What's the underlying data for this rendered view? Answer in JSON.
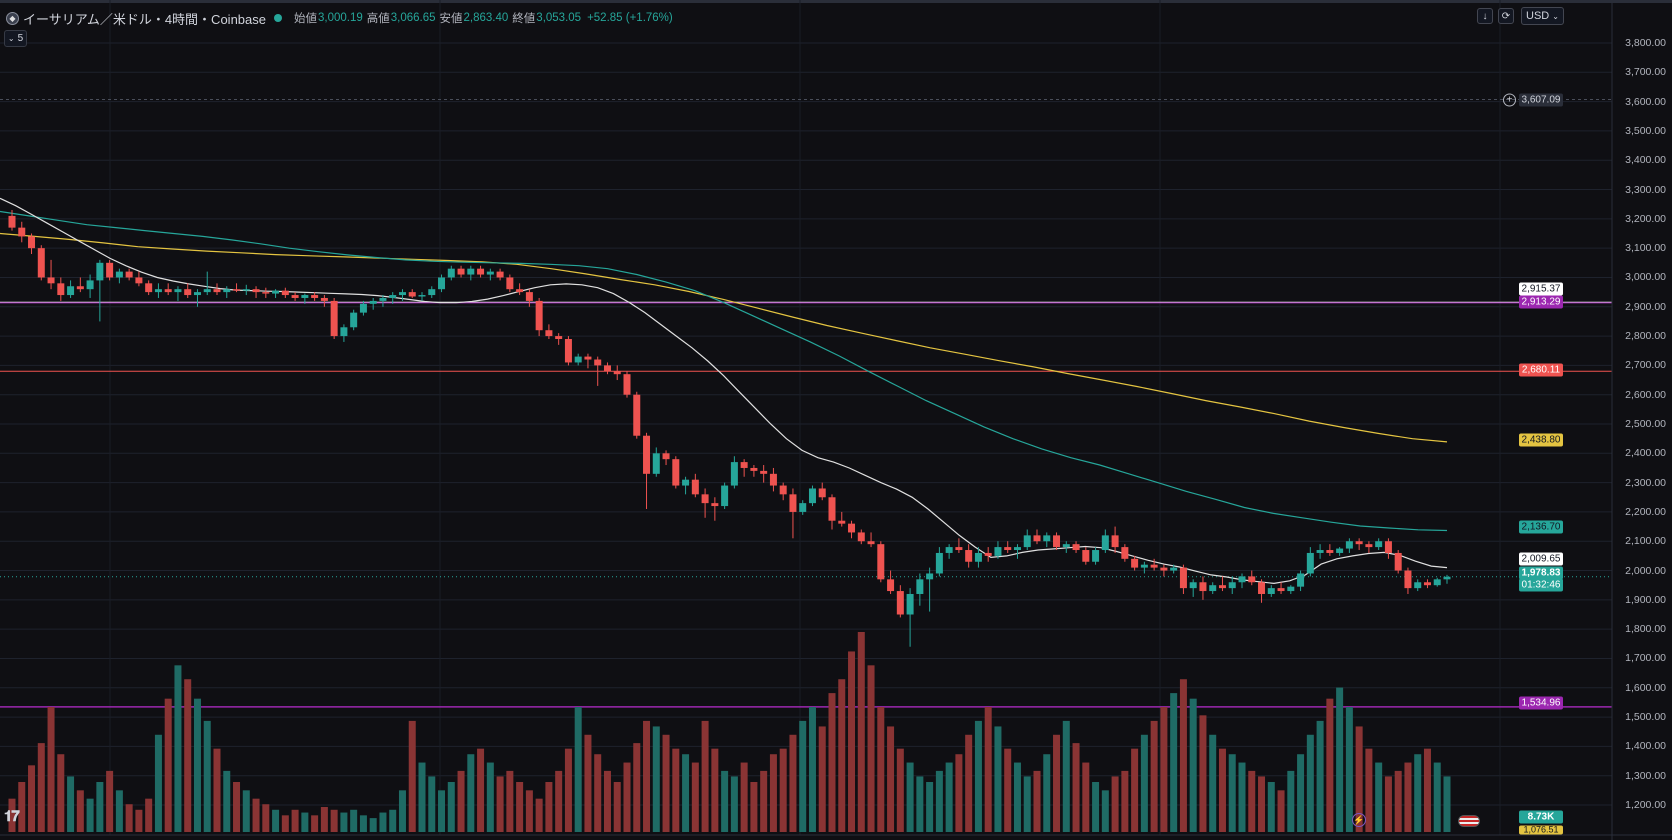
{
  "legend": {
    "coin_icon": "ethereum-icon",
    "title": "イーサリアム／米ドル・4時間・Coinbase",
    "open_label": "始値",
    "open_value": "3,000.19",
    "high_label": "高値",
    "high_value": "3,066.65",
    "low_label": "安値",
    "low_value": "2,863.40",
    "close_label": "終値",
    "close_value": "3,053.05",
    "change": "+52.85 (+1.76%)",
    "collapse_count": "5"
  },
  "toolbar": {
    "currency": "USD",
    "download_icon": "arrow-down-icon",
    "refresh_icon": "refresh-icon"
  },
  "colors": {
    "background": "#0f0f13",
    "up": "#26a69a",
    "down": "#ef5350",
    "ma_white": "#e0e0e0",
    "ma_teal": "#26a69a",
    "ma_yellow": "#e4c441",
    "line_red": "#ef5350",
    "line_purple": "#9c27b0",
    "line_white": "#ffffff"
  },
  "axis": {
    "currency_unit": "USD",
    "ticks": [
      "3,800.00",
      "3,700.00",
      "3,600.00",
      "3,500.00",
      "3,400.00",
      "3,300.00",
      "3,200.00",
      "3,100.00",
      "3,000.00",
      "2,900.00",
      "2,800.00",
      "2,700.00",
      "2,600.00",
      "2,500.00",
      "2,400.00",
      "2,300.00",
      "2,200.00",
      "2,100.00",
      "2,000.00",
      "1,900.00",
      "1,800.00",
      "1,700.00",
      "1,600.00",
      "1,500.00",
      "1,400.00",
      "1,300.00",
      "1,200.00"
    ]
  },
  "price_tags": {
    "crosshair": "3,607.09",
    "line_white_1": "2,915.37",
    "line_white_2": "2,913.29",
    "line_red": "2,680.11",
    "ma_yellow": "2,438.80",
    "ma_teal": "2,136.70",
    "ma_white": "2,009.65",
    "last_price": "1,978.83",
    "countdown": "01:32:46",
    "line_purple": "1,534.96",
    "volume": "8.73K",
    "volume_extra": "1,076.51"
  },
  "chart_data": {
    "type": "candlestick",
    "y_range": [
      1150,
      3850
    ],
    "horizontal_lines": [
      3607.09,
      2915.37,
      2913.29,
      2680.11,
      1534.96
    ],
    "last_price": 1978.83,
    "candles": [
      [
        3210,
        3230,
        3160,
        3170
      ],
      [
        3170,
        3190,
        3120,
        3140
      ],
      [
        3140,
        3150,
        3080,
        3100
      ],
      [
        3100,
        3110,
        2990,
        3000
      ],
      [
        3000,
        3060,
        2960,
        2980
      ],
      [
        2980,
        3000,
        2920,
        2940
      ],
      [
        2940,
        2990,
        2930,
        2970
      ],
      [
        2970,
        3000,
        2950,
        2960
      ],
      [
        2960,
        3010,
        2930,
        2990
      ],
      [
        2990,
        3060,
        2850,
        3050
      ],
      [
        3050,
        3060,
        2990,
        3000
      ],
      [
        3000,
        3030,
        2980,
        3020
      ],
      [
        3020,
        3030,
        2990,
        3000
      ],
      [
        3000,
        3020,
        2970,
        2980
      ],
      [
        2980,
        2990,
        2940,
        2950
      ],
      [
        2950,
        2980,
        2930,
        2960
      ],
      [
        2960,
        2980,
        2940,
        2950
      ],
      [
        2950,
        2970,
        2920,
        2960
      ],
      [
        2960,
        2980,
        2930,
        2940
      ],
      [
        2940,
        2960,
        2900,
        2950
      ],
      [
        2950,
        3020,
        2940,
        2960
      ],
      [
        2960,
        2980,
        2940,
        2950
      ],
      [
        2950,
        2970,
        2930,
        2960
      ],
      [
        2960,
        2980,
        2950,
        2955
      ],
      [
        2955,
        2975,
        2940,
        2960
      ],
      [
        2960,
        2970,
        2930,
        2950
      ],
      [
        2950,
        2965,
        2930,
        2945
      ],
      [
        2945,
        2960,
        2930,
        2955
      ],
      [
        2955,
        2965,
        2930,
        2940
      ],
      [
        2940,
        2950,
        2920,
        2930
      ],
      [
        2930,
        2945,
        2910,
        2940
      ],
      [
        2940,
        2950,
        2920,
        2930
      ],
      [
        2930,
        2940,
        2900,
        2920
      ],
      [
        2920,
        2930,
        2790,
        2800
      ],
      [
        2800,
        2840,
        2780,
        2830
      ],
      [
        2830,
        2890,
        2820,
        2880
      ],
      [
        2880,
        2920,
        2870,
        2910
      ],
      [
        2910,
        2930,
        2890,
        2920
      ],
      [
        2920,
        2940,
        2900,
        2930
      ],
      [
        2930,
        2950,
        2910,
        2940
      ],
      [
        2940,
        2960,
        2920,
        2950
      ],
      [
        2950,
        2960,
        2930,
        2935
      ],
      [
        2935,
        2950,
        2920,
        2940
      ],
      [
        2940,
        2970,
        2930,
        2960
      ],
      [
        2960,
        3010,
        2950,
        3000
      ],
      [
        3000,
        3040,
        2990,
        3030
      ],
      [
        3030,
        3040,
        3000,
        3010
      ],
      [
        3010,
        3040,
        2990,
        3030
      ],
      [
        3030,
        3040,
        3000,
        3010
      ],
      [
        3010,
        3030,
        2990,
        3020
      ],
      [
        3020,
        3030,
        2990,
        3000
      ],
      [
        3000,
        3010,
        2950,
        2960
      ],
      [
        2960,
        2980,
        2940,
        2950
      ],
      [
        2950,
        2960,
        2900,
        2920
      ],
      [
        2920,
        2930,
        2800,
        2820
      ],
      [
        2820,
        2840,
        2790,
        2800
      ],
      [
        2800,
        2810,
        2770,
        2790
      ],
      [
        2790,
        2800,
        2700,
        2710
      ],
      [
        2710,
        2740,
        2700,
        2730
      ],
      [
        2730,
        2740,
        2690,
        2720
      ],
      [
        2720,
        2730,
        2630,
        2700
      ],
      [
        2700,
        2710,
        2670,
        2680
      ],
      [
        2680,
        2700,
        2650,
        2670
      ],
      [
        2670,
        2680,
        2590,
        2600
      ],
      [
        2600,
        2610,
        2450,
        2460
      ],
      [
        2460,
        2470,
        2210,
        2330
      ],
      [
        2330,
        2420,
        2320,
        2400
      ],
      [
        2400,
        2410,
        2360,
        2380
      ],
      [
        2380,
        2390,
        2280,
        2290
      ],
      [
        2290,
        2320,
        2260,
        2310
      ],
      [
        2310,
        2330,
        2250,
        2260
      ],
      [
        2260,
        2280,
        2180,
        2230
      ],
      [
        2230,
        2250,
        2170,
        2220
      ],
      [
        2220,
        2300,
        2210,
        2290
      ],
      [
        2290,
        2390,
        2280,
        2370
      ],
      [
        2370,
        2380,
        2320,
        2350
      ],
      [
        2350,
        2360,
        2320,
        2340
      ],
      [
        2340,
        2360,
        2300,
        2330
      ],
      [
        2330,
        2350,
        2270,
        2290
      ],
      [
        2290,
        2300,
        2240,
        2260
      ],
      [
        2260,
        2280,
        2110,
        2200
      ],
      [
        2200,
        2240,
        2190,
        2230
      ],
      [
        2230,
        2290,
        2220,
        2280
      ],
      [
        2280,
        2300,
        2240,
        2250
      ],
      [
        2250,
        2260,
        2140,
        2170
      ],
      [
        2170,
        2200,
        2150,
        2160
      ],
      [
        2160,
        2170,
        2110,
        2130
      ],
      [
        2130,
        2140,
        2090,
        2100
      ],
      [
        2100,
        2130,
        2080,
        2090
      ],
      [
        2090,
        2100,
        1960,
        1970
      ],
      [
        1970,
        2000,
        1920,
        1930
      ],
      [
        1930,
        1950,
        1840,
        1850
      ],
      [
        1850,
        1940,
        1740,
        1920
      ],
      [
        1920,
        1990,
        1880,
        1970
      ],
      [
        1970,
        2010,
        1860,
        1990
      ],
      [
        1990,
        2080,
        1980,
        2060
      ],
      [
        2060,
        2090,
        2040,
        2080
      ],
      [
        2080,
        2110,
        2060,
        2070
      ],
      [
        2070,
        2090,
        2010,
        2030
      ],
      [
        2030,
        2080,
        2010,
        2060
      ],
      [
        2060,
        2080,
        2030,
        2050
      ],
      [
        2050,
        2100,
        2040,
        2080
      ],
      [
        2080,
        2100,
        2060,
        2070
      ],
      [
        2070,
        2090,
        2040,
        2080
      ],
      [
        2080,
        2140,
        2070,
        2120
      ],
      [
        2120,
        2140,
        2090,
        2100
      ],
      [
        2100,
        2130,
        2080,
        2120
      ],
      [
        2120,
        2130,
        2070,
        2080
      ],
      [
        2080,
        2100,
        2060,
        2090
      ],
      [
        2090,
        2100,
        2060,
        2070
      ],
      [
        2070,
        2080,
        2020,
        2030
      ],
      [
        2030,
        2080,
        2020,
        2070
      ],
      [
        2070,
        2140,
        2060,
        2120
      ],
      [
        2120,
        2150,
        2060,
        2080
      ],
      [
        2080,
        2090,
        2030,
        2040
      ],
      [
        2040,
        2050,
        2000,
        2010
      ],
      [
        2010,
        2030,
        1990,
        2020
      ],
      [
        2020,
        2040,
        2000,
        2010
      ],
      [
        2010,
        2020,
        1980,
        2000
      ],
      [
        2000,
        2020,
        1990,
        2010
      ],
      [
        2010,
        2020,
        1920,
        1940
      ],
      [
        1940,
        1970,
        1910,
        1960
      ],
      [
        1960,
        1980,
        1900,
        1930
      ],
      [
        1930,
        1960,
        1920,
        1950
      ],
      [
        1950,
        1980,
        1930,
        1940
      ],
      [
        1940,
        1980,
        1920,
        1960
      ],
      [
        1960,
        1990,
        1940,
        1980
      ],
      [
        1980,
        2000,
        1950,
        1960
      ],
      [
        1960,
        1970,
        1890,
        1920
      ],
      [
        1920,
        1950,
        1910,
        1940
      ],
      [
        1940,
        1960,
        1920,
        1930
      ],
      [
        1930,
        1950,
        1920,
        1945
      ],
      [
        1945,
        2000,
        1930,
        1990
      ],
      [
        1990,
        2080,
        1980,
        2060
      ],
      [
        2060,
        2090,
        2040,
        2070
      ],
      [
        2070,
        2090,
        2050,
        2060
      ],
      [
        2060,
        2080,
        2050,
        2075
      ],
      [
        2075,
        2110,
        2060,
        2100
      ],
      [
        2100,
        2110,
        2070,
        2090
      ],
      [
        2090,
        2100,
        2060,
        2080
      ],
      [
        2080,
        2110,
        2070,
        2100
      ],
      [
        2100,
        2110,
        2040,
        2060
      ],
      [
        2060,
        2070,
        1990,
        2000
      ],
      [
        2000,
        2010,
        1920,
        1940
      ],
      [
        1940,
        1970,
        1930,
        1960
      ],
      [
        1960,
        1970,
        1940,
        1950
      ],
      [
        1950,
        1975,
        1945,
        1970
      ],
      [
        1970,
        1985,
        1955,
        1978.83
      ]
    ],
    "ma_white": [
      3270,
      3245,
      3215,
      3185,
      3155,
      3125,
      3095,
      3065,
      3040,
      3018,
      3000,
      2988,
      2978,
      2970,
      2962,
      2957,
      2955,
      2953,
      2952,
      2950,
      2948,
      2946,
      2944,
      2942,
      2938,
      2932,
      2925,
      2918,
      2914,
      2914,
      2918,
      2926,
      2938,
      2952,
      2965,
      2975,
      2978,
      2975,
      2965,
      2945,
      2915,
      2880,
      2840,
      2800,
      2760,
      2715,
      2665,
      2610,
      2555,
      2500,
      2450,
      2410,
      2385,
      2370,
      2350,
      2325,
      2300,
      2278,
      2250,
      2210,
      2165,
      2120,
      2080,
      2045,
      2050,
      2062,
      2070,
      2074,
      2078,
      2082,
      2078,
      2065,
      2050,
      2035,
      2022,
      2012,
      1998,
      1985,
      1978,
      1968,
      1962,
      1956,
      1965,
      1985,
      2022,
      2040,
      2050,
      2058,
      2062,
      2052,
      2032,
      2015,
      2010
    ],
    "ma_teal": [
      3225,
      3210,
      3195,
      3180,
      3170,
      3160,
      3150,
      3140,
      3128,
      3115,
      3100,
      3088,
      3077,
      3068,
      3060,
      3055,
      3052,
      3050,
      3048,
      3045,
      3040,
      3030,
      3010,
      2985,
      2955,
      2915,
      2870,
      2825,
      2780,
      2732,
      2680,
      2630,
      2580,
      2535,
      2490,
      2450,
      2415,
      2385,
      2360,
      2330,
      2300,
      2270,
      2243,
      2215,
      2195,
      2180,
      2165,
      2152,
      2145,
      2139,
      2136.7
    ],
    "ma_yellow": [
      3150,
      3140,
      3130,
      3118,
      3105,
      3097,
      3090,
      3084,
      3078,
      3074,
      3070,
      3066,
      3062,
      3058,
      3053,
      3045,
      3030,
      3012,
      2993,
      2975,
      2952,
      2925,
      2895,
      2865,
      2836,
      2810,
      2785,
      2760,
      2738,
      2716,
      2695,
      2672,
      2650,
      2628,
      2604,
      2580,
      2558,
      2535,
      2510,
      2488,
      2468,
      2450,
      2438.8
    ],
    "volume": [
      12,
      18,
      24,
      32,
      45,
      28,
      20,
      15,
      12,
      18,
      22,
      15,
      10,
      8,
      12,
      35,
      48,
      60,
      55,
      48,
      40,
      30,
      22,
      18,
      15,
      12,
      10,
      8,
      6,
      8,
      7,
      6,
      9,
      8,
      7,
      8,
      6,
      5,
      7,
      8,
      15,
      40,
      25,
      20,
      15,
      18,
      22,
      28,
      30,
      25,
      20,
      22,
      18,
      15,
      12,
      18,
      22,
      30,
      45,
      35,
      28,
      22,
      18,
      25,
      32,
      40,
      38,
      35,
      30,
      28,
      25,
      40,
      30,
      22,
      20,
      25,
      18,
      22,
      28,
      30,
      35,
      40,
      45,
      38,
      50,
      55,
      65,
      72,
      60,
      45,
      38,
      30,
      25,
      20,
      18,
      22,
      25,
      28,
      35,
      40,
      45,
      38,
      30,
      25,
      20,
      22,
      28,
      35,
      40,
      32,
      25,
      18,
      15,
      20,
      22,
      30,
      35,
      40,
      45,
      50,
      55,
      48,
      42,
      35,
      30,
      28,
      25,
      22,
      20,
      18,
      15,
      22,
      28,
      35,
      40,
      48,
      52,
      45,
      38,
      30,
      25,
      20,
      22,
      25,
      28,
      30,
      25,
      20,
      18,
      16,
      14,
      12,
      10,
      12,
      15
    ]
  }
}
